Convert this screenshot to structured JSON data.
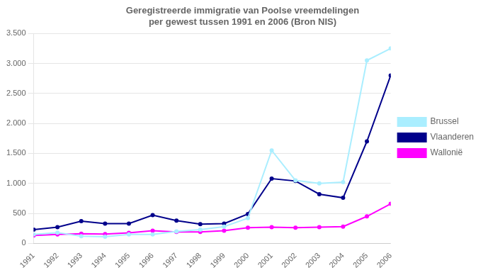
{
  "chart_data": {
    "type": "line",
    "title": "Geregistreerde immigratie van Poolse vreemdelingen\nper gewest tussen 1991 en 2006 (Bron NIS)",
    "x": [
      1991,
      1992,
      1993,
      1994,
      1995,
      1996,
      1997,
      1998,
      1999,
      2000,
      2001,
      2002,
      2003,
      2004,
      2005,
      2006
    ],
    "series": [
      {
        "name": "Brussel",
        "color": "#aaeeff",
        "values": [
          150,
          180,
          120,
          110,
          150,
          150,
          200,
          230,
          280,
          420,
          1550,
          1050,
          1000,
          1020,
          3050,
          3250
        ]
      },
      {
        "name": "Vlaanderen",
        "color": "#00008b",
        "values": [
          230,
          270,
          370,
          330,
          330,
          470,
          380,
          320,
          330,
          490,
          1080,
          1040,
          820,
          760,
          1700,
          2800
        ]
      },
      {
        "name": "Wallonië",
        "color": "#ff00ff",
        "values": [
          130,
          150,
          160,
          155,
          175,
          210,
          190,
          190,
          210,
          260,
          270,
          260,
          270,
          280,
          450,
          660
        ]
      }
    ],
    "xlim": [
      1991,
      2006
    ],
    "xticks": [
      1991,
      1992,
      1993,
      1994,
      1995,
      1996,
      1997,
      1998,
      1999,
      2000,
      2001,
      2002,
      2003,
      2004,
      2005,
      2006
    ],
    "ylim": [
      0,
      3500
    ],
    "yticks": [
      0,
      500,
      {
        "value": 1000,
        "label": "1.000"
      },
      {
        "value": 1500,
        "label": "1.500"
      },
      {
        "value": 2000,
        "label": "2.000"
      },
      {
        "value": 2500,
        "label": "2.500"
      },
      {
        "value": 3000,
        "label": "3.000"
      },
      {
        "value": 3500,
        "label": "3.500"
      }
    ],
    "grid": "y",
    "legend": "right"
  }
}
